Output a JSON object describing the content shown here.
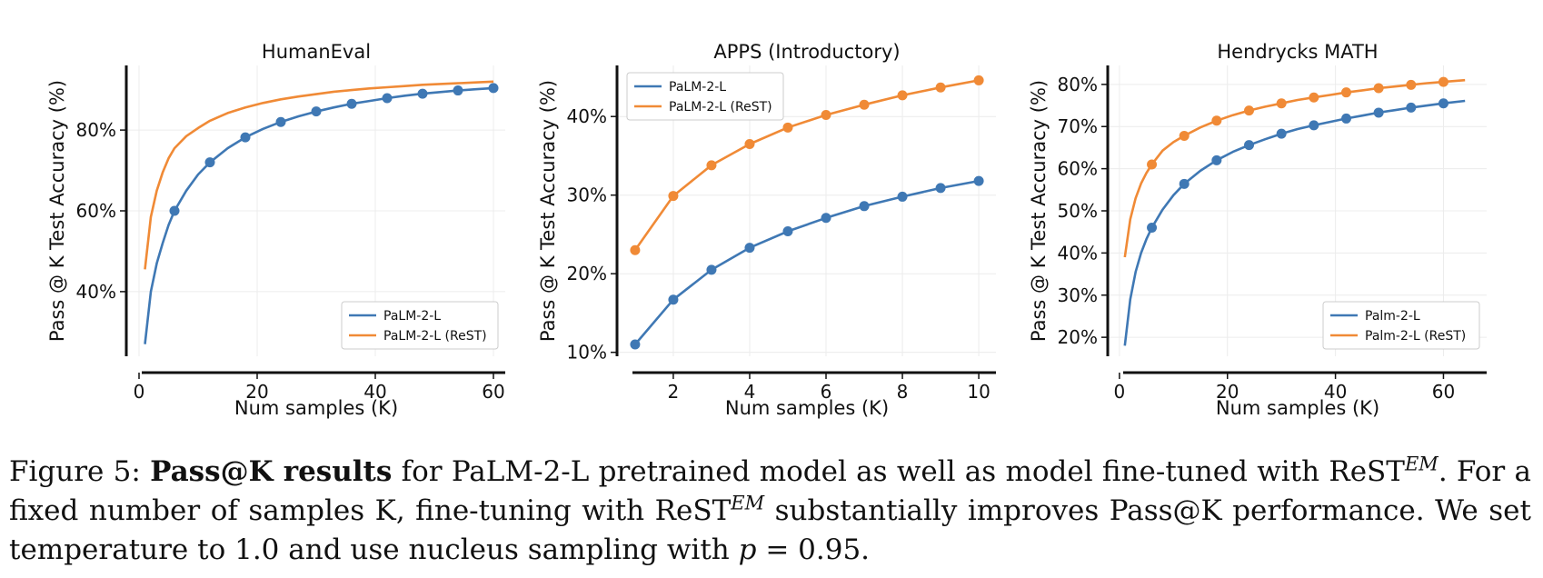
{
  "chart_data": [
    {
      "type": "line",
      "title": "HumanEval",
      "xlabel": "Num samples (K)",
      "ylabel": "Pass @ K Test Accuracy (%)",
      "xlim": [
        -2,
        62
      ],
      "ylim": [
        24,
        96
      ],
      "xticks": [
        0,
        20,
        40,
        60
      ],
      "xtick_labels": [
        "0",
        "20",
        "40",
        "60"
      ],
      "yticks": [
        40,
        60,
        80
      ],
      "ytick_labels": [
        "40%",
        "60%",
        "80%"
      ],
      "grid": true,
      "legend_position": "lower-right",
      "series": [
        {
          "name": "PaLM-2-L",
          "color": "#3f78b4",
          "x": [
            1,
            2,
            3,
            4,
            5,
            6,
            8,
            10,
            12,
            15,
            18,
            21,
            24,
            27,
            30,
            33,
            36,
            39,
            42,
            45,
            48,
            51,
            54,
            57,
            60
          ],
          "values": [
            27,
            40,
            47,
            52,
            56.5,
            60,
            65,
            69,
            72,
            75.5,
            78.2,
            80.3,
            82,
            83.4,
            84.6,
            85.6,
            86.5,
            87.2,
            87.9,
            88.5,
            89,
            89.4,
            89.8,
            90.1,
            90.4
          ],
          "markers_x": [
            6,
            12,
            18,
            24,
            30,
            36,
            42,
            48,
            54,
            60
          ],
          "markers_y": [
            60,
            72,
            78.2,
            82,
            84.6,
            86.5,
            87.9,
            89,
            89.8,
            90.4
          ]
        },
        {
          "name": "PaLM-2-L (ReST)",
          "color": "#f08a36",
          "x": [
            1,
            2,
            3,
            4,
            5,
            6,
            8,
            10,
            12,
            15,
            18,
            21,
            24,
            27,
            30,
            33,
            36,
            39,
            42,
            45,
            48,
            51,
            54,
            57,
            60
          ],
          "values": [
            45.5,
            58.5,
            65,
            69.5,
            73,
            75.5,
            78.5,
            80.5,
            82.3,
            84.2,
            85.6,
            86.7,
            87.6,
            88.3,
            88.9,
            89.5,
            89.9,
            90.3,
            90.6,
            90.9,
            91.2,
            91.4,
            91.6,
            91.8,
            92
          ]
        }
      ]
    },
    {
      "type": "line",
      "title": "APPS (Introductory)",
      "xlabel": "Num samples (K)",
      "ylabel": "Pass @ K Test Accuracy (%)",
      "xlim": [
        0.55,
        10.45
      ],
      "ylim": [
        9.5,
        46.5
      ],
      "xticks": [
        2,
        4,
        6,
        8,
        10
      ],
      "xtick_labels": [
        "2",
        "4",
        "6",
        "8",
        "10"
      ],
      "yticks": [
        10,
        20,
        30,
        40
      ],
      "ytick_labels": [
        "10%",
        "20%",
        "30%",
        "40%"
      ],
      "grid": true,
      "legend_position": "upper-left",
      "series": [
        {
          "name": "PaLM-2-L",
          "color": "#3f78b4",
          "x": [
            1,
            2,
            3,
            4,
            5,
            6,
            7,
            8,
            9,
            10
          ],
          "values": [
            11,
            16.7,
            20.5,
            23.3,
            25.4,
            27.1,
            28.6,
            29.8,
            30.9,
            31.8
          ],
          "markers_x": [
            1,
            2,
            3,
            4,
            5,
            6,
            7,
            8,
            9,
            10
          ],
          "markers_y": [
            11,
            16.7,
            20.5,
            23.3,
            25.4,
            27.1,
            28.6,
            29.8,
            30.9,
            31.8
          ]
        },
        {
          "name": "PaLM-2-L (ReST)",
          "color": "#f08a36",
          "x": [
            1,
            2,
            3,
            4,
            5,
            6,
            7,
            8,
            9,
            10
          ],
          "values": [
            23,
            29.9,
            33.8,
            36.5,
            38.6,
            40.2,
            41.5,
            42.7,
            43.7,
            44.6
          ],
          "markers_x": [
            1,
            2,
            3,
            4,
            5,
            6,
            7,
            8,
            9,
            10
          ],
          "markers_y": [
            23,
            29.9,
            33.8,
            36.5,
            38.6,
            40.2,
            41.5,
            42.7,
            43.7,
            44.6
          ]
        }
      ]
    },
    {
      "type": "line",
      "title": "Hendrycks MATH",
      "xlabel": "Num samples (K)",
      "ylabel": "Pass @ K Test Accuracy (%)",
      "xlim": [
        -2,
        68
      ],
      "ylim": [
        15.5,
        84.5
      ],
      "xticks": [
        0,
        20,
        40,
        60
      ],
      "xtick_labels": [
        "0",
        "20",
        "40",
        "60"
      ],
      "yticks": [
        20,
        30,
        40,
        50,
        60,
        70,
        80
      ],
      "ytick_labels": [
        "20%",
        "30%",
        "40%",
        "50%",
        "60%",
        "70%",
        "80%"
      ],
      "grid": true,
      "legend_position": "lower-right",
      "series": [
        {
          "name": "Palm-2-L",
          "color": "#3f78b4",
          "x": [
            1,
            2,
            3,
            4,
            5,
            6,
            8,
            10,
            12,
            15,
            18,
            21,
            24,
            27,
            30,
            33,
            36,
            39,
            42,
            45,
            48,
            51,
            54,
            57,
            60,
            64
          ],
          "values": [
            18,
            29,
            35.5,
            40,
            43.3,
            46,
            50.3,
            53.7,
            56.4,
            59.5,
            62,
            64,
            65.6,
            67,
            68.3,
            69.4,
            70.3,
            71.1,
            71.9,
            72.6,
            73.3,
            73.9,
            74.5,
            75,
            75.5,
            76.1
          ],
          "markers_x": [
            6,
            12,
            18,
            24,
            30,
            36,
            42,
            48,
            54,
            60
          ],
          "markers_y": [
            46,
            56.4,
            62,
            65.6,
            68.3,
            70.3,
            71.9,
            73.3,
            74.5,
            75.5
          ]
        },
        {
          "name": "Palm-2-L (ReST)",
          "color": "#f08a36",
          "x": [
            1,
            2,
            3,
            4,
            5,
            6,
            8,
            10,
            12,
            15,
            18,
            21,
            24,
            27,
            30,
            33,
            36,
            39,
            42,
            45,
            48,
            51,
            54,
            57,
            60,
            64
          ],
          "values": [
            39,
            48,
            53,
            56.5,
            59,
            61,
            64.3,
            66.3,
            67.8,
            69.8,
            71.4,
            72.7,
            73.8,
            74.7,
            75.5,
            76.3,
            76.9,
            77.5,
            78.1,
            78.6,
            79.1,
            79.5,
            79.9,
            80.3,
            80.6,
            81
          ],
          "markers_x": [
            6,
            12,
            18,
            24,
            30,
            36,
            42,
            48,
            54,
            60
          ],
          "markers_y": [
            61,
            67.8,
            71.4,
            73.8,
            75.5,
            76.9,
            78.1,
            79.1,
            79.9,
            80.6
          ]
        }
      ]
    }
  ],
  "caption": {
    "prefix": "Figure 5: ",
    "bold": "Pass@K results",
    "text1": " for PaLM-2-L pretrained model as well as model fine-tuned with ReST",
    "sup1": "EM",
    "text2": ". For a fixed number of samples K, fine-tuning with ReST",
    "sup2": "EM",
    "text3": " substantially improves Pass@K performance. We set temperature to 1.0 and use nucleus sampling with ",
    "italic": "p",
    "text4": " = 0.95."
  }
}
